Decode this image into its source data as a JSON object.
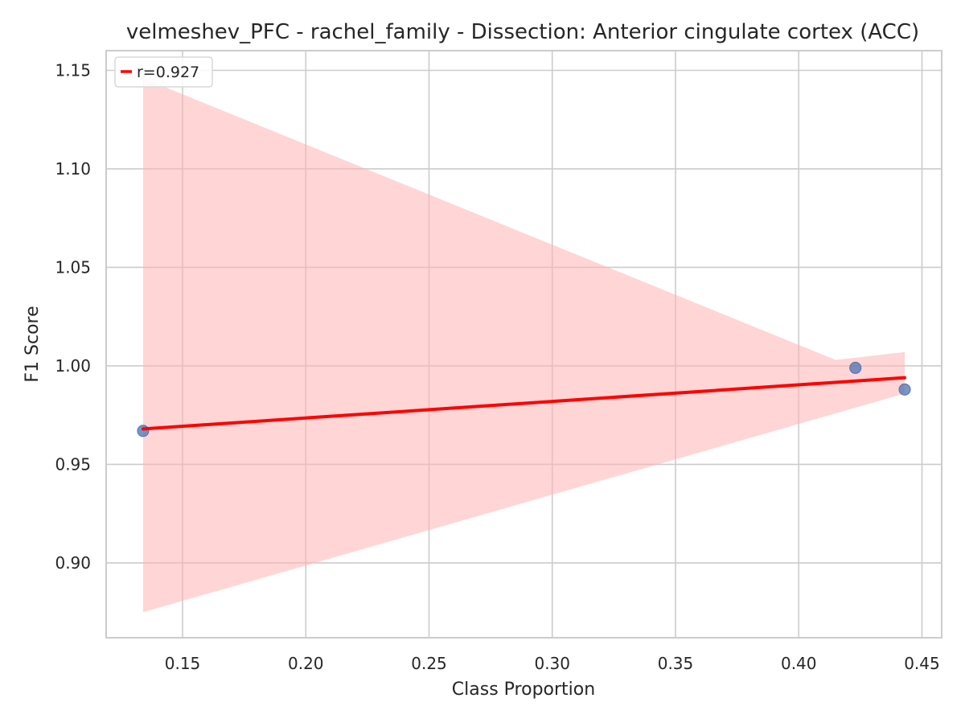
{
  "chart_data": {
    "type": "scatter",
    "title": "velmeshev_PFC - rachel_family - Dissection: Anterior cingulate cortex (ACC)",
    "xlabel": "Class Proportion",
    "ylabel": "F1 Score",
    "xlim": [
      0.119,
      0.458
    ],
    "ylim": [
      0.862,
      1.16
    ],
    "xticks": [
      0.15,
      0.2,
      0.25,
      0.3,
      0.35,
      0.4,
      0.45
    ],
    "xtick_labels": [
      "0.15",
      "0.20",
      "0.25",
      "0.30",
      "0.35",
      "0.40",
      "0.45"
    ],
    "yticks": [
      0.9,
      0.95,
      1.0,
      1.05,
      1.1,
      1.15
    ],
    "ytick_labels": [
      "0.90",
      "0.95",
      "1.00",
      "1.05",
      "1.10",
      "1.15"
    ],
    "grid": true,
    "legend_placement": "top-left",
    "series": [
      {
        "kind": "points",
        "color": "#4c72b0",
        "points": [
          {
            "x": 0.134,
            "y": 0.967
          },
          {
            "x": 0.423,
            "y": 0.999
          },
          {
            "x": 0.443,
            "y": 0.988
          }
        ]
      },
      {
        "kind": "fit",
        "name": "r=0.927",
        "color": "#ff0000",
        "line": [
          {
            "x": 0.134,
            "y": 0.968
          },
          {
            "x": 0.443,
            "y": 0.994
          }
        ],
        "band_color": "#ffb3b3",
        "band_upper": [
          {
            "x": 0.134,
            "y": 1.146
          },
          {
            "x": 0.415,
            "y": 1.003
          },
          {
            "x": 0.443,
            "y": 1.007
          }
        ],
        "band_lower": [
          {
            "x": 0.443,
            "y": 0.986
          },
          {
            "x": 0.134,
            "y": 0.875
          }
        ]
      }
    ]
  }
}
